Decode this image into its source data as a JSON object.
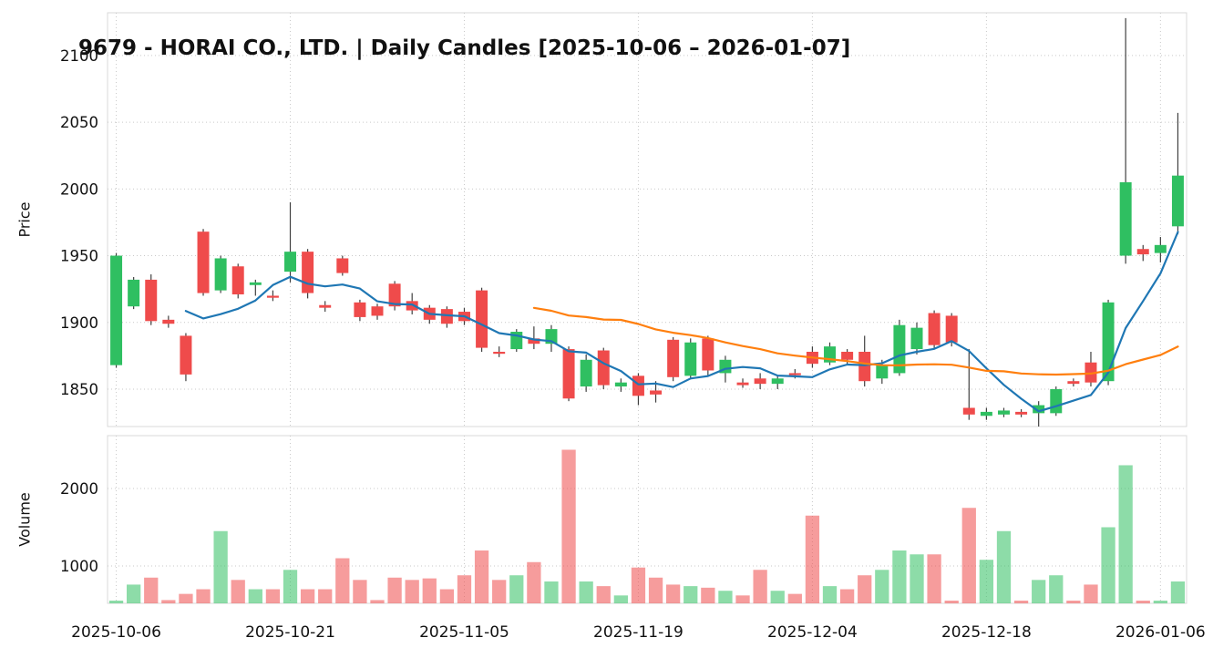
{
  "title": "9679 - HORAI CO., LTD. | Daily Candles [2025-10-06 – 2026-01-07]",
  "chart_data": {
    "type": "candlestick",
    "ylabel_price": "Price",
    "ylabel_volume": "Volume",
    "x_tick_labels": [
      "2025-10-06",
      "2025-10-21",
      "2025-11-05",
      "2025-11-19",
      "2025-12-04",
      "2025-12-18",
      "2026-01-06"
    ],
    "x_tick_indices": [
      0,
      10,
      20,
      30,
      40,
      50,
      60
    ],
    "price_ticks": [
      1850,
      1900,
      1950,
      2000,
      2050,
      2100
    ],
    "volume_ticks": [
      1000,
      2000
    ],
    "price_ylim": [
      1822,
      2132
    ],
    "volume_ylim": [
      518,
      2682
    ],
    "grid": true,
    "legend": "none",
    "moving_averages": [
      {
        "name": "MA5",
        "window": 5,
        "color": "#1f77b4"
      },
      {
        "name": "MA25",
        "window": 25,
        "color": "#ff7f0e"
      }
    ],
    "colors": {
      "up": "#2fbf61",
      "down": "#ef4b4b",
      "wick": "#404040",
      "grid": "#c9c9c9",
      "border": "#d9d9d9",
      "text": "#111111",
      "volume_opacity": 0.55
    },
    "ohlcv_columns": [
      "date",
      "open",
      "high",
      "low",
      "close",
      "volume"
    ],
    "ohlcv": [
      [
        "2025-10-06",
        1868,
        1952,
        1866,
        1950,
        160
      ],
      [
        "2025-10-07",
        1912,
        1934,
        1910,
        1932,
        760
      ],
      [
        "2025-10-08",
        1932,
        1936,
        1898,
        1901,
        850
      ],
      [
        "2025-10-09",
        1902,
        1905,
        1896,
        1899,
        560
      ],
      [
        "2025-10-10",
        1890,
        1892,
        1856,
        1861,
        640
      ],
      [
        "2025-10-14",
        1968,
        1970,
        1920,
        1922,
        700
      ],
      [
        "2025-10-15",
        1924,
        1950,
        1922,
        1948,
        1450
      ],
      [
        "2025-10-16",
        1942,
        1944,
        1918,
        1921,
        820
      ],
      [
        "2025-10-17",
        1928,
        1932,
        1920,
        1930,
        700
      ],
      [
        "2025-10-20",
        1920,
        1924,
        1916,
        1919,
        700
      ],
      [
        "2025-10-21",
        1938,
        1990,
        1930,
        1953,
        950
      ],
      [
        "2025-10-22",
        1953,
        1955,
        1918,
        1922,
        700
      ],
      [
        "2025-10-23",
        1913,
        1916,
        1908,
        1911,
        700
      ],
      [
        "2025-10-24",
        1948,
        1950,
        1935,
        1937,
        1100
      ],
      [
        "2025-10-27",
        1915,
        1917,
        1901,
        1904,
        820
      ],
      [
        "2025-10-28",
        1912,
        1914,
        1902,
        1905,
        560
      ],
      [
        "2025-10-29",
        1929,
        1931,
        1909,
        1912,
        850
      ],
      [
        "2025-10-30",
        1916,
        1922,
        1906,
        1909,
        820
      ],
      [
        "2025-10-31",
        1911,
        1913,
        1899,
        1902,
        840
      ],
      [
        "2025-11-04",
        1910,
        1912,
        1896,
        1899,
        700
      ],
      [
        "2025-11-05",
        1908,
        1911,
        1898,
        1901,
        880
      ],
      [
        "2025-11-06",
        1924,
        1926,
        1878,
        1881,
        1200
      ],
      [
        "2025-11-07",
        1878,
        1882,
        1874,
        1877,
        820
      ],
      [
        "2025-11-10",
        1880,
        1895,
        1878,
        1893,
        880
      ],
      [
        "2025-11-11",
        1888,
        1897,
        1880,
        1884,
        1050
      ],
      [
        "2025-11-12",
        1884,
        1898,
        1878,
        1895,
        800
      ],
      [
        "2025-11-13",
        1880,
        1882,
        1841,
        1843,
        2500
      ],
      [
        "2025-11-14",
        1852,
        1876,
        1848,
        1872,
        800
      ],
      [
        "2025-11-17",
        1879,
        1881,
        1850,
        1853,
        740
      ],
      [
        "2025-11-18",
        1852,
        1858,
        1848,
        1855,
        620
      ],
      [
        "2025-11-19",
        1860,
        1862,
        1838,
        1845,
        980
      ],
      [
        "2025-11-20",
        1849,
        1856,
        1840,
        1846,
        850
      ],
      [
        "2025-11-21",
        1887,
        1889,
        1856,
        1859,
        760
      ],
      [
        "2025-11-25",
        1860,
        1888,
        1858,
        1885,
        740
      ],
      [
        "2025-11-26",
        1888,
        1890,
        1860,
        1864,
        720
      ],
      [
        "2025-11-27",
        1862,
        1875,
        1855,
        1872,
        680
      ],
      [
        "2025-11-28",
        1855,
        1858,
        1851,
        1853,
        620
      ],
      [
        "2025-12-01",
        1858,
        1862,
        1850,
        1854,
        950
      ],
      [
        "2025-12-02",
        1854,
        1860,
        1850,
        1858,
        680
      ],
      [
        "2025-12-03",
        1862,
        1865,
        1858,
        1861,
        640
      ],
      [
        "2025-12-04",
        1878,
        1882,
        1866,
        1869,
        1650
      ],
      [
        "2025-12-05",
        1870,
        1885,
        1868,
        1882,
        740
      ],
      [
        "2025-12-08",
        1878,
        1880,
        1868,
        1872,
        700
      ],
      [
        "2025-12-09",
        1878,
        1890,
        1852,
        1856,
        880
      ],
      [
        "2025-12-10",
        1858,
        1872,
        1854,
        1868,
        950
      ],
      [
        "2025-12-11",
        1862,
        1902,
        1860,
        1898,
        1200
      ],
      [
        "2025-12-12",
        1880,
        1900,
        1876,
        1896,
        1150
      ],
      [
        "2025-12-15",
        1907,
        1909,
        1880,
        1883,
        1150
      ],
      [
        "2025-12-16",
        1905,
        1907,
        1882,
        1885,
        400
      ],
      [
        "2025-12-17",
        1836,
        1880,
        1827,
        1831,
        1750
      ],
      [
        "2025-12-18",
        1830,
        1836,
        1827,
        1833,
        1080
      ],
      [
        "2025-12-19",
        1831,
        1836,
        1829,
        1834,
        1450
      ],
      [
        "2025-12-22",
        1833,
        1835,
        1829,
        1831,
        400
      ],
      [
        "2025-12-23",
        1832,
        1841,
        1822,
        1838,
        820
      ],
      [
        "2025-12-24",
        1832,
        1852,
        1830,
        1850,
        880
      ],
      [
        "2025-12-25",
        1856,
        1858,
        1852,
        1854,
        360
      ],
      [
        "2025-12-26",
        1870,
        1878,
        1852,
        1855,
        760
      ],
      [
        "2025-12-29",
        1856,
        1917,
        1853,
        1915,
        1500
      ],
      [
        "2025-12-30",
        1950,
        2128,
        1944,
        2005,
        2300
      ],
      [
        "2026-01-05",
        1955,
        1958,
        1946,
        1951,
        360
      ],
      [
        "2026-01-06",
        1952,
        1964,
        1945,
        1958,
        420
      ],
      [
        "2026-01-07",
        1972,
        2057,
        1966,
        2010,
        800
      ]
    ]
  }
}
